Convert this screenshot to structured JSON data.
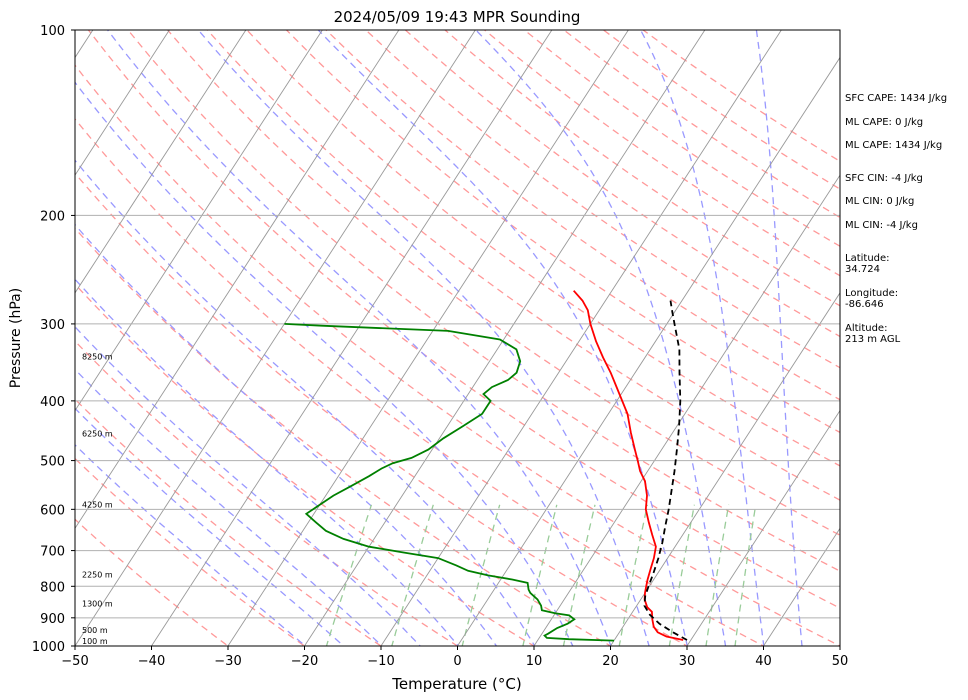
{
  "chart_data": {
    "type": "line",
    "title": "2024/05/09 19:43 MPR Sounding",
    "xlabel": "Temperature (°C)",
    "ylabel": "Pressure (hPa)",
    "xlim": [
      -50,
      50
    ],
    "ylim": [
      1000,
      100
    ],
    "yscale": "log",
    "grid": true,
    "x_ticks": [
      -50,
      -40,
      -30,
      -20,
      -10,
      0,
      10,
      20,
      30,
      40,
      50
    ],
    "y_ticks": [
      100,
      200,
      300,
      400,
      500,
      600,
      700,
      800,
      900,
      1000
    ],
    "skew_isotherms_deg": true,
    "background_lines": {
      "dry_adiabats_color": "#ff9999",
      "moist_adiabats_color": "#9999ff",
      "mixing_ratio_color": "#99cc99",
      "isotherm_color": "#999999"
    },
    "height_labels": [
      {
        "pressure": 1000,
        "text": "100 m"
      },
      {
        "pressure": 960,
        "text": "500 m"
      },
      {
        "pressure": 870,
        "text": "1300 m"
      },
      {
        "pressure": 780,
        "text": "2250 m"
      },
      {
        "pressure": 600,
        "text": "4250 m"
      },
      {
        "pressure": 460,
        "text": "6250 m"
      },
      {
        "pressure": 345,
        "text": "8250 m"
      }
    ],
    "series": [
      {
        "color": "#ff0000",
        "style": "solid",
        "points": [
          [
            978,
            29.0
          ],
          [
            965,
            26.5
          ],
          [
            950,
            25.0
          ],
          [
            930,
            24.0
          ],
          [
            905,
            23.2
          ],
          [
            880,
            22.5
          ],
          [
            865,
            21.5
          ],
          [
            840,
            20.5
          ],
          [
            820,
            20.0
          ],
          [
            800,
            19.6
          ],
          [
            780,
            19.2
          ],
          [
            750,
            18.7
          ],
          [
            720,
            18.2
          ],
          [
            690,
            17.5
          ],
          [
            660,
            16.0
          ],
          [
            630,
            14.5
          ],
          [
            600,
            13.0
          ],
          [
            570,
            12.0
          ],
          [
            540,
            10.5
          ],
          [
            520,
            9.0
          ],
          [
            500,
            7.8
          ],
          [
            480,
            6.5
          ],
          [
            450,
            4.5
          ],
          [
            420,
            2.5
          ],
          [
            400,
            0.7
          ],
          [
            380,
            -1.2
          ],
          [
            360,
            -3.2
          ],
          [
            340,
            -5.5
          ],
          [
            320,
            -7.8
          ],
          [
            300,
            -10.0
          ],
          [
            285,
            -11.5
          ],
          [
            275,
            -13.0
          ],
          [
            265,
            -15.0
          ]
        ]
      },
      {
        "color": "#008000",
        "style": "solid",
        "points": [
          [
            980,
            20.0
          ],
          [
            975,
            14.0
          ],
          [
            970,
            11.0
          ],
          [
            962,
            10.5
          ],
          [
            955,
            10.8
          ],
          [
            935,
            11.5
          ],
          [
            920,
            12.5
          ],
          [
            905,
            13.0
          ],
          [
            892,
            12.0
          ],
          [
            885,
            10.0
          ],
          [
            875,
            8.0
          ],
          [
            860,
            7.5
          ],
          [
            840,
            6.5
          ],
          [
            820,
            5.0
          ],
          [
            810,
            4.5
          ],
          [
            790,
            3.8
          ],
          [
            780,
            1.5
          ],
          [
            768,
            -2.0
          ],
          [
            755,
            -5.0
          ],
          [
            740,
            -7.0
          ],
          [
            720,
            -10.0
          ],
          [
            705,
            -15.0
          ],
          [
            690,
            -20.0
          ],
          [
            670,
            -24.0
          ],
          [
            650,
            -27.0
          ],
          [
            630,
            -29.0
          ],
          [
            610,
            -31.0
          ],
          [
            590,
            -30.0
          ],
          [
            570,
            -29.0
          ],
          [
            550,
            -27.5
          ],
          [
            530,
            -26.0
          ],
          [
            515,
            -25.0
          ],
          [
            505,
            -24.0
          ],
          [
            495,
            -22.0
          ],
          [
            480,
            -20.5
          ],
          [
            460,
            -19.5
          ],
          [
            440,
            -18.0
          ],
          [
            420,
            -16.5
          ],
          [
            400,
            -16.5
          ],
          [
            390,
            -18.0
          ],
          [
            380,
            -17.5
          ],
          [
            370,
            -16.0
          ],
          [
            360,
            -15.5
          ],
          [
            345,
            -16.0
          ],
          [
            330,
            -17.5
          ],
          [
            318,
            -20.5
          ],
          [
            308,
            -28.0
          ],
          [
            302,
            -45.0
          ],
          [
            300,
            -50.0
          ]
        ]
      },
      {
        "color": "#000000",
        "style": "dashed",
        "points": [
          [
            978,
            29.5
          ],
          [
            950,
            27.0
          ],
          [
            920,
            24.5
          ],
          [
            890,
            22.5
          ],
          [
            860,
            21.0
          ],
          [
            830,
            20.3
          ],
          [
            800,
            19.9
          ],
          [
            760,
            19.4
          ],
          [
            720,
            18.8
          ],
          [
            680,
            18.0
          ],
          [
            640,
            17.0
          ],
          [
            600,
            16.0
          ],
          [
            560,
            14.8
          ],
          [
            520,
            13.5
          ],
          [
            480,
            12.0
          ],
          [
            440,
            10.3
          ],
          [
            400,
            8.3
          ],
          [
            360,
            5.8
          ],
          [
            330,
            3.8
          ],
          [
            300,
            1.0
          ],
          [
            285,
            -0.5
          ],
          [
            275,
            -1.5
          ]
        ]
      }
    ]
  },
  "side_panel": {
    "sfc_cape": "SFC CAPE: 1434 J/kg",
    "ml_cape_1": "ML CAPE: 0 J/kg",
    "ml_cape_2": "ML CAPE: 1434 J/kg",
    "sfc_cin": "SFC CIN: -4 J/kg",
    "ml_cin_1": "ML CIN: 0 J/kg",
    "ml_cin_2": "ML CIN: -4 J/kg",
    "latitude": "Latitude:\n34.724",
    "longitude": "Longitude:\n-86.646",
    "altitude": "Altitude:\n213 m AGL"
  }
}
